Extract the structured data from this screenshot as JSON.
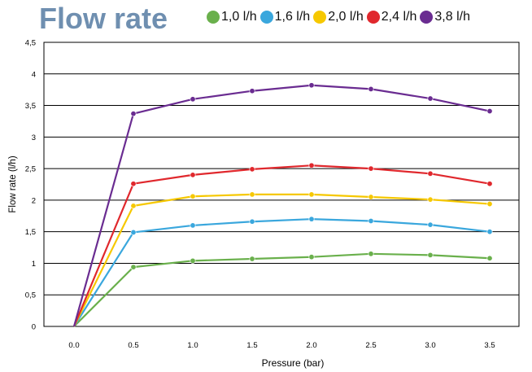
{
  "chart_data": {
    "type": "line",
    "title": "Flow rate",
    "xlabel": "Pressure (bar)",
    "ylabel": "Flow rate  (l/h)",
    "x": [
      "0.0",
      "0.5",
      "1.0",
      "1.5",
      "2.0",
      "2.5",
      "3.0",
      "3.5"
    ],
    "ylim": [
      0,
      4.5
    ],
    "yticks": [
      "0",
      "0,5",
      "1",
      "1,5",
      "2",
      "2,5",
      "3",
      "3,5",
      "4",
      "4,5"
    ],
    "grid": "horizontal",
    "legend_position": "top",
    "series": [
      {
        "name": "1,0 l/h",
        "color": "#6ab04c",
        "values": [
          0,
          0.94,
          1.04,
          1.07,
          1.1,
          1.15,
          1.13,
          1.08
        ]
      },
      {
        "name": "1,6 l/h",
        "color": "#3aa7dd",
        "values": [
          0,
          1.49,
          1.6,
          1.66,
          1.7,
          1.67,
          1.61,
          1.5
        ]
      },
      {
        "name": "2,0 l/h",
        "color": "#f6c800",
        "values": [
          0,
          1.91,
          2.06,
          2.09,
          2.09,
          2.05,
          2.01,
          1.94
        ]
      },
      {
        "name": "2,4 l/h",
        "color": "#e0282d",
        "values": [
          0,
          2.26,
          2.4,
          2.49,
          2.55,
          2.5,
          2.42,
          2.26
        ]
      },
      {
        "name": "3,8 l/h",
        "color": "#6a2c91",
        "values": [
          0,
          3.37,
          3.6,
          3.73,
          3.82,
          3.76,
          3.61,
          3.41
        ]
      }
    ]
  }
}
